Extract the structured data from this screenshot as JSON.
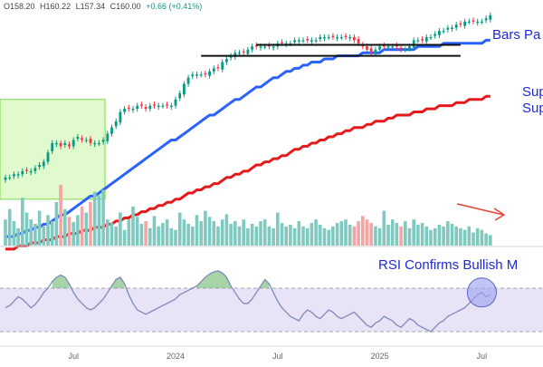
{
  "ohlc_readout": {
    "open": "O158.20",
    "high": "H160.22",
    "low": "L157.34",
    "close": "C160.00",
    "change": "+0.66 (+0.41%)"
  },
  "colors": {
    "up": "#089981",
    "down": "#f23645",
    "ma50": "#2962ff",
    "ma200": "#e41a1c",
    "rsi_line": "#7e8ab8",
    "rsi_band": "#d9d0f2",
    "rsi_overbought_fill": "#5fb05f",
    "annotation": "#1a2bd6",
    "box_fill": "#c7f5a6",
    "box_stroke": "#7fd94a",
    "circle_fill": "#9ea6f0",
    "vol_up": "#7fc9c0",
    "vol_down": "#f4a5a3",
    "arrow": "#e4443a"
  },
  "annotations": {
    "bars_pattern": "Bars Pa",
    "support_1": "Sup",
    "support_2": "Sup",
    "rsi_confirms": "RSI Confirms Bullish M"
  },
  "chart_data": [
    {
      "type": "candlestick",
      "ylim": [
        95,
        170
      ],
      "x_tick_labels": [
        "Jul",
        "2024",
        "Jul",
        "2025",
        "Jul"
      ],
      "x_tick_index": [
        16,
        40,
        64,
        88,
        112
      ],
      "close": [
        116,
        116,
        117,
        117,
        118,
        118,
        118,
        119,
        120,
        121,
        124,
        127,
        127,
        126,
        127,
        126,
        128,
        129,
        128,
        128,
        127,
        127,
        127,
        128,
        130,
        132,
        134,
        137,
        138,
        138,
        138,
        139,
        139,
        138,
        139,
        139,
        139,
        139,
        139,
        139,
        141,
        143,
        146,
        148,
        149,
        149,
        149,
        149,
        150,
        151,
        151,
        153,
        154,
        155,
        156,
        156,
        156,
        157,
        158,
        158,
        158,
        158,
        158,
        158,
        159,
        159,
        159,
        159,
        160,
        160,
        160,
        160,
        160,
        160,
        161,
        161,
        161,
        161,
        161,
        161,
        161,
        161,
        160,
        159,
        158,
        157,
        156,
        157,
        158,
        158,
        158,
        158,
        158,
        157,
        157,
        158,
        160,
        160,
        160,
        161,
        161,
        162,
        163,
        163,
        164,
        164,
        165,
        165,
        166,
        166,
        166,
        166,
        166,
        167,
        168
      ],
      "ma50": [
        97,
        97,
        97,
        98,
        98,
        99,
        99,
        100,
        100,
        101,
        101,
        102,
        103,
        104,
        104,
        105,
        106,
        107,
        108,
        109,
        110,
        110,
        111,
        112,
        113,
        114,
        115,
        116,
        117,
        118,
        119,
        120,
        121,
        122,
        123,
        124,
        125,
        126,
        127,
        128,
        128,
        129,
        130,
        131,
        132,
        133,
        134,
        135,
        136,
        136,
        137,
        138,
        139,
        140,
        141,
        141,
        142,
        143,
        144,
        145,
        145,
        146,
        147,
        148,
        148,
        149,
        150,
        150,
        151,
        151,
        152,
        152,
        153,
        153,
        153,
        154,
        154,
        154,
        155,
        155,
        155,
        155,
        155,
        155,
        156,
        156,
        156,
        156,
        156,
        157,
        157,
        157,
        157,
        157,
        157,
        157,
        157,
        158,
        158,
        158,
        158,
        158,
        158,
        159,
        159,
        159,
        159,
        159,
        159,
        159,
        159,
        159,
        159,
        160,
        160
      ],
      "ma200": [
        93,
        93,
        93,
        94,
        94,
        94,
        95,
        95,
        95,
        96,
        96,
        96,
        97,
        97,
        97,
        98,
        98,
        98,
        99,
        99,
        99,
        100,
        100,
        100,
        101,
        101,
        102,
        102,
        103,
        103,
        104,
        104,
        105,
        105,
        106,
        106,
        107,
        107,
        108,
        108,
        109,
        109,
        110,
        111,
        111,
        112,
        112,
        113,
        113,
        114,
        114,
        115,
        116,
        116,
        117,
        117,
        118,
        118,
        119,
        120,
        120,
        121,
        121,
        122,
        122,
        123,
        123,
        124,
        125,
        125,
        126,
        126,
        127,
        127,
        128,
        128,
        129,
        129,
        130,
        130,
        131,
        131,
        132,
        132,
        132,
        133,
        133,
        134,
        134,
        134,
        135,
        135,
        136,
        136,
        136,
        136,
        137,
        137,
        137,
        138,
        138,
        138,
        139,
        139,
        139,
        139,
        140,
        140,
        140,
        141,
        141,
        141,
        141,
        142,
        142
      ],
      "series_names": [
        "50-day MA",
        "200-day MA"
      ],
      "horizontal_levels": [
        {
          "name": "upper",
          "value": 158.5,
          "from_index": 59,
          "to_index": 107
        },
        {
          "name": "lower",
          "value": 155.0,
          "from_index": 46,
          "to_index": 107
        }
      ],
      "shaded_box": {
        "from_index": 0,
        "to_index": 23,
        "ymin": 109,
        "ymax": 141
      }
    },
    {
      "type": "bar",
      "name": "volume",
      "values": [
        30,
        42,
        28,
        20,
        55,
        38,
        30,
        25,
        40,
        22,
        35,
        28,
        50,
        70,
        42,
        33,
        27,
        35,
        45,
        38,
        50,
        62,
        58,
        64,
        30,
        26,
        22,
        38,
        18,
        30,
        45,
        33,
        25,
        28,
        20,
        34,
        22,
        26,
        30,
        20,
        18,
        38,
        30,
        25,
        22,
        35,
        28,
        40,
        33,
        28,
        22,
        30,
        36,
        25,
        28,
        22,
        30,
        20,
        25,
        22,
        28,
        30,
        22,
        20,
        38,
        26,
        22,
        24,
        20,
        28,
        22,
        20,
        26,
        30,
        24,
        20,
        18,
        22,
        26,
        28,
        30,
        24,
        22,
        28,
        34,
        30,
        26,
        22,
        20,
        40,
        24,
        30,
        26,
        22,
        28,
        20,
        30,
        24,
        26,
        22,
        18,
        20,
        24,
        22,
        28,
        25,
        22,
        20,
        18,
        22,
        15,
        20,
        18,
        14,
        12
      ],
      "ylim": [
        0,
        75
      ]
    },
    {
      "type": "line",
      "name": "RSI",
      "values": [
        52,
        54,
        58,
        62,
        60,
        56,
        52,
        55,
        60,
        66,
        70,
        76,
        80,
        82,
        80,
        74,
        66,
        60,
        56,
        52,
        50,
        52,
        56,
        60,
        66,
        72,
        78,
        80,
        74,
        64,
        56,
        50,
        48,
        46,
        48,
        50,
        52,
        54,
        56,
        58,
        60,
        64,
        66,
        68,
        70,
        72,
        76,
        80,
        83,
        85,
        86,
        84,
        80,
        72,
        66,
        60,
        56,
        56,
        60,
        66,
        72,
        78,
        74,
        66,
        58,
        52,
        48,
        44,
        42,
        40,
        46,
        50,
        48,
        44,
        42,
        46,
        50,
        48,
        44,
        42,
        44,
        46,
        48,
        44,
        40,
        36,
        34,
        38,
        40,
        44,
        42,
        40,
        36,
        34,
        38,
        42,
        40,
        36,
        34,
        32,
        30,
        34,
        38,
        40,
        44,
        46,
        48,
        50,
        52,
        56,
        60,
        64,
        66,
        62,
        64
      ],
      "ylim": [
        20,
        100
      ],
      "band": [
        30,
        70
      ],
      "levels": [
        70,
        30
      ]
    }
  ]
}
